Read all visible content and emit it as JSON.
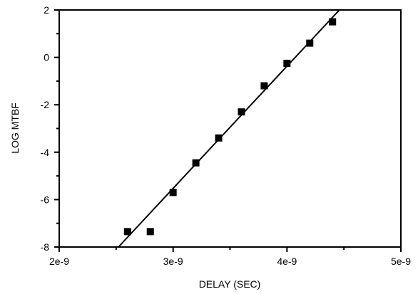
{
  "chart_data": {
    "type": "scatter",
    "xlabel": "DELAY (SEC)",
    "ylabel": "LOG MTBF",
    "xlim": [
      2e-09,
      5e-09
    ],
    "ylim": [
      -8,
      2
    ],
    "x_ticks": [
      {
        "value": 2e-09,
        "label": "2e-9"
      },
      {
        "value": 3e-09,
        "label": "3e-9"
      },
      {
        "value": 4e-09,
        "label": "4e-9"
      },
      {
        "value": 5e-09,
        "label": "5e-9"
      }
    ],
    "y_ticks": [
      {
        "value": 2,
        "label": "2"
      },
      {
        "value": 0,
        "label": "0"
      },
      {
        "value": -2,
        "label": "-2"
      },
      {
        "value": -4,
        "label": "-4"
      },
      {
        "value": -6,
        "label": "-6"
      },
      {
        "value": -8,
        "label": "-8"
      }
    ],
    "x_minor_ticks": [
      2.5e-09,
      3.5e-09,
      4.5e-09
    ],
    "y_minor_ticks": [
      1,
      -1,
      -3,
      -5,
      -7
    ],
    "series": [
      {
        "marker": "square",
        "color": "#000000",
        "points": [
          {
            "x": 2.6e-09,
            "y": -7.35
          },
          {
            "x": 2.8e-09,
            "y": -7.35
          },
          {
            "x": 3e-09,
            "y": -5.7
          },
          {
            "x": 3.2e-09,
            "y": -4.45
          },
          {
            "x": 3.4e-09,
            "y": -3.4
          },
          {
            "x": 3.6e-09,
            "y": -2.3
          },
          {
            "x": 3.8e-09,
            "y": -1.2
          },
          {
            "x": 4e-09,
            "y": -0.25
          },
          {
            "x": 4.2e-09,
            "y": 0.6
          },
          {
            "x": 4.4e-09,
            "y": 1.5
          }
        ]
      }
    ],
    "fit_line": {
      "color": "#000000",
      "points": [
        {
          "x": 2.52e-09,
          "y": -8
        },
        {
          "x": 4.46e-09,
          "y": 2
        }
      ]
    },
    "grid": false,
    "legend": "none"
  }
}
